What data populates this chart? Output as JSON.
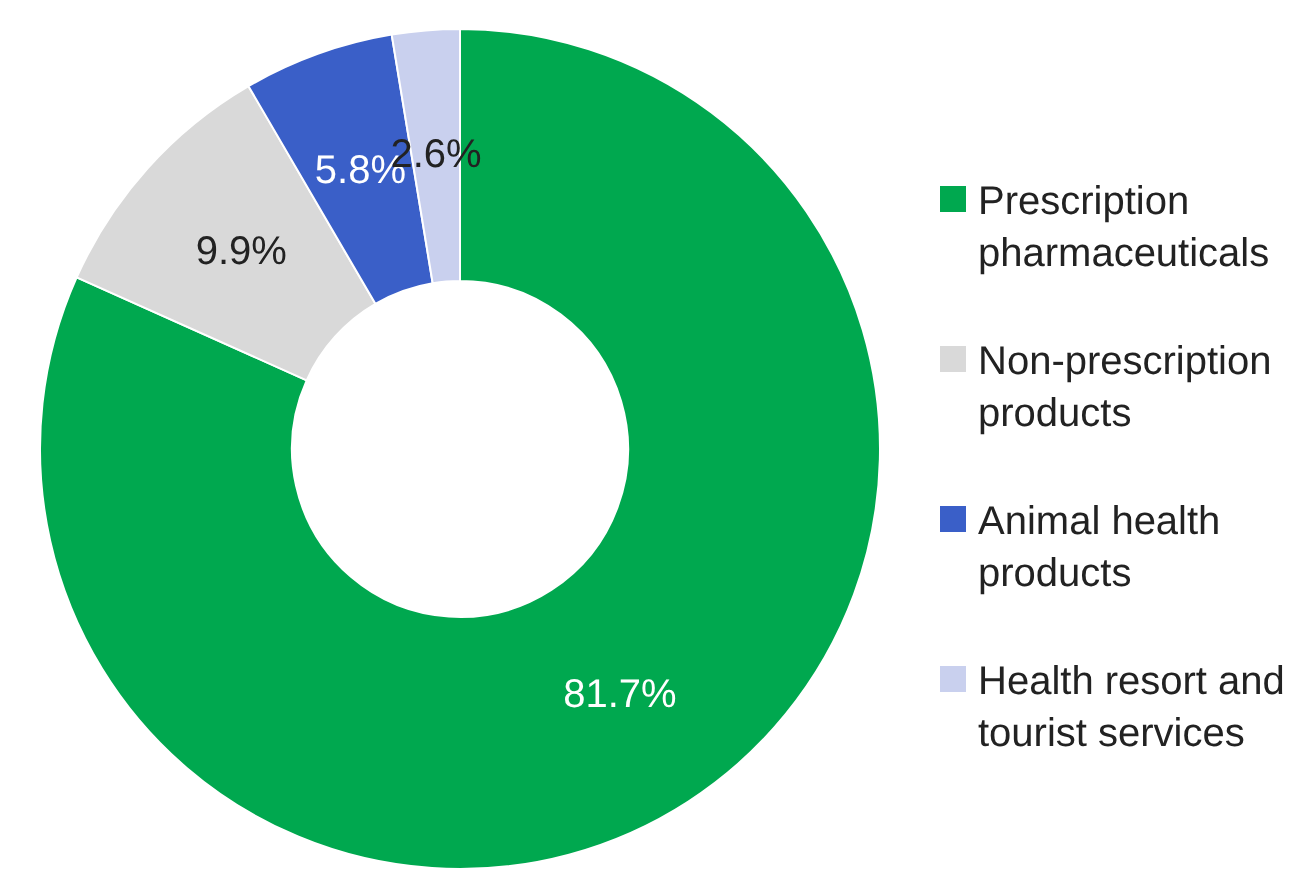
{
  "chart_data": {
    "type": "donut",
    "categories": [
      "Prescription pharmaceuticals",
      "Non-prescription products",
      "Animal health products",
      "Health resort and tourist services"
    ],
    "values": [
      81.7,
      9.9,
      5.8,
      2.6
    ],
    "colors": [
      "#00a84f",
      "#d9d9d9",
      "#3a5fc8",
      "#c9d0ee"
    ],
    "value_labels": [
      "81.7%",
      "9.9%",
      "5.8%",
      "2.6%"
    ],
    "legend": "right"
  }
}
